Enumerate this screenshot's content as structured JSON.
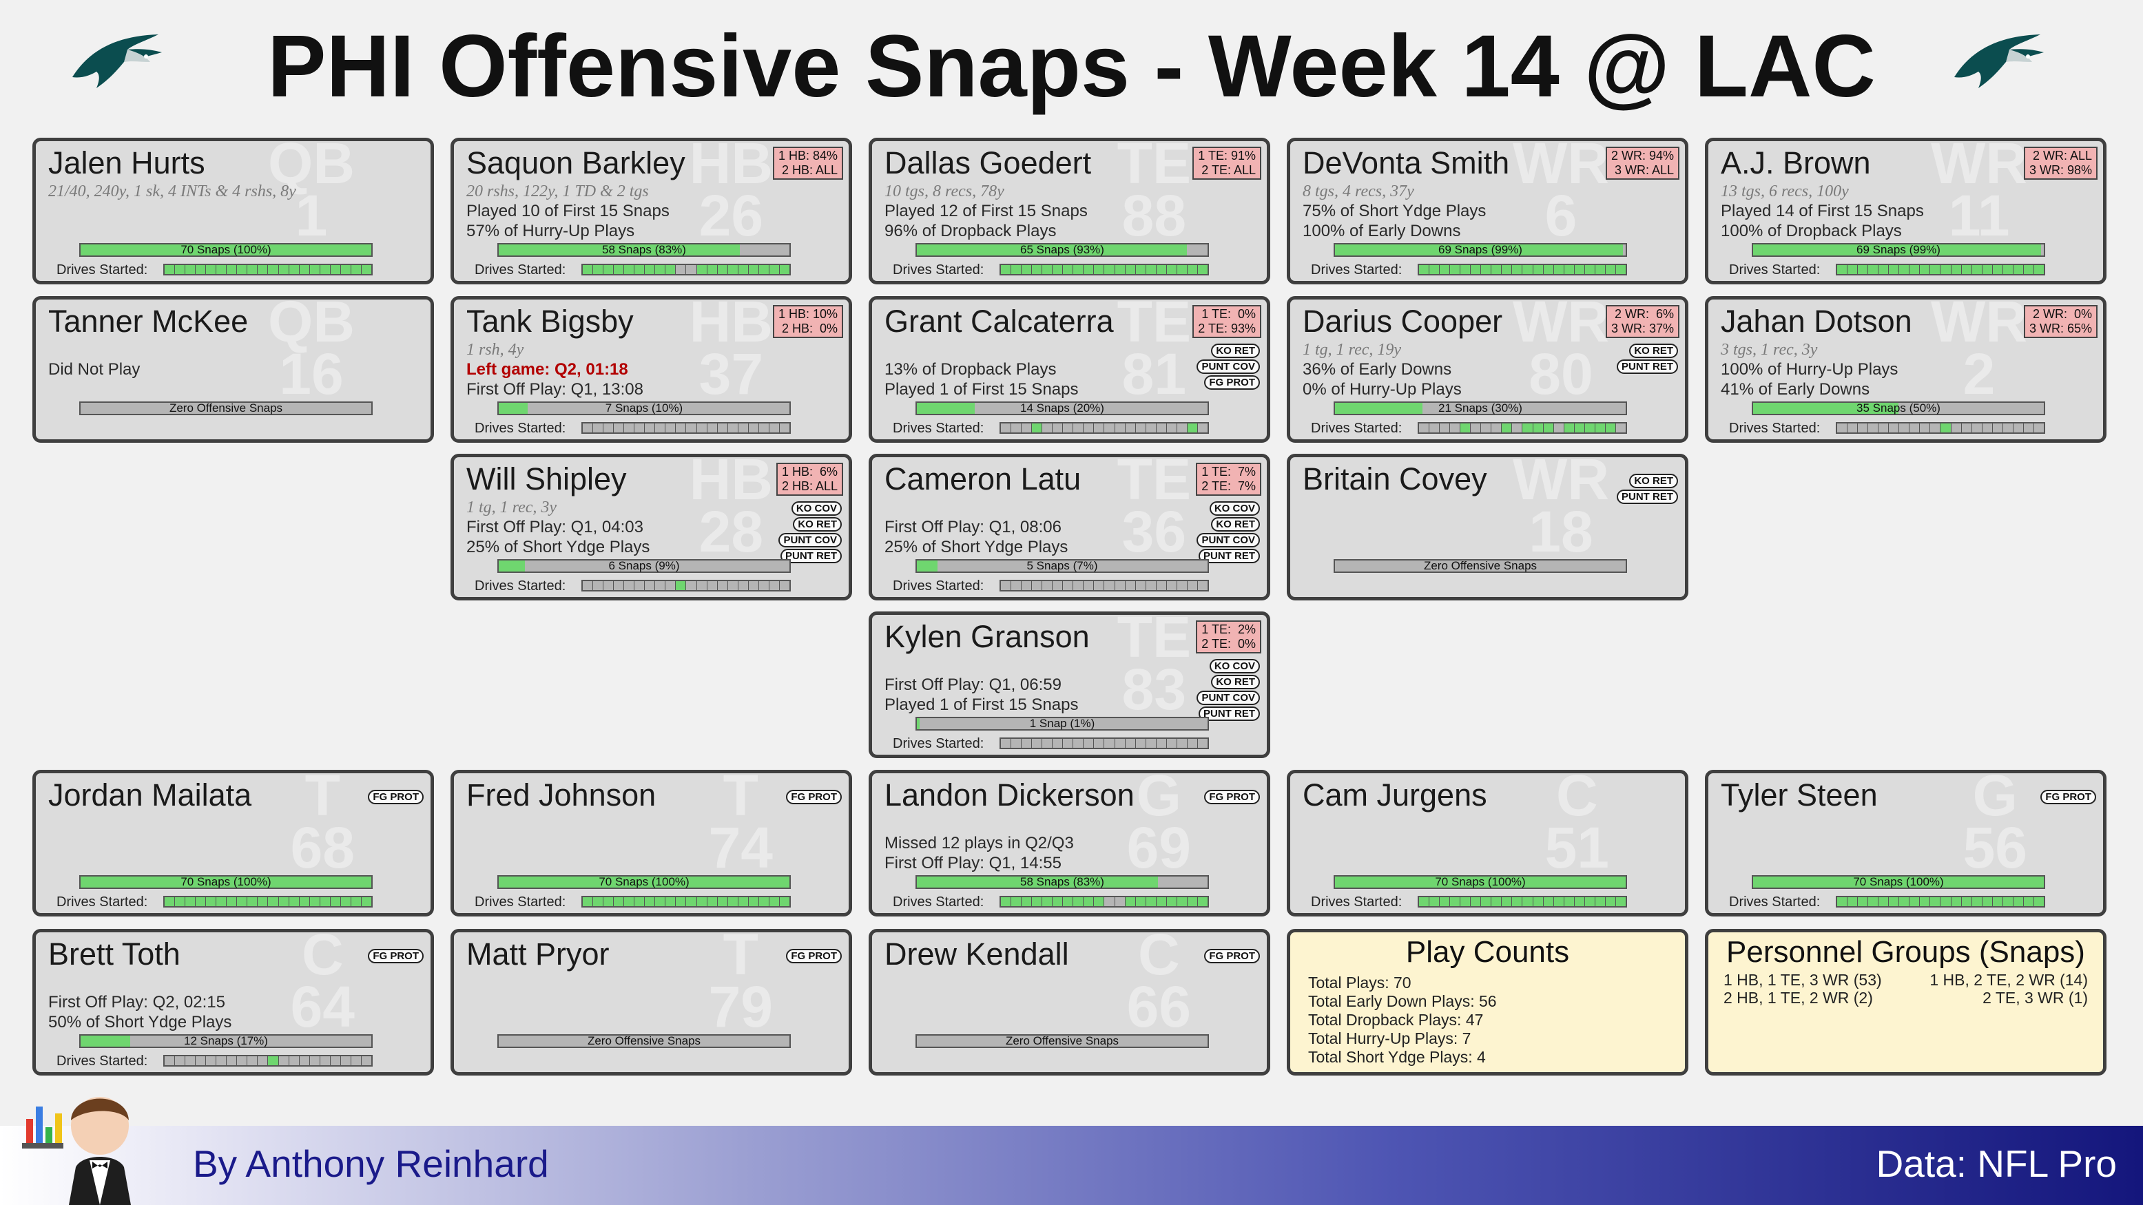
{
  "title": "PHI Offensive Snaps - Week 14 @ LAC",
  "drives_label": "Drives Started:",
  "colors": {
    "bar_fill": "#6fd66f",
    "share_badge": "#f1b3b3",
    "info_card": "#fdf4d0"
  },
  "players": [
    {
      "name": "Jalen Hurts",
      "pos": "QB",
      "num": "1",
      "share": "",
      "lines": [
        {
          "t": "21/40, 240y, 1 sk, 4 INTs & 4 rshs, 8y",
          "s": "sub"
        }
      ],
      "tags": [],
      "snaps_label": "70 Snaps (100%)",
      "snap_pct": 1.0,
      "drives": [
        1,
        1,
        1,
        1,
        1,
        1,
        1,
        1,
        1,
        1,
        1,
        1,
        1,
        1,
        1,
        1,
        1,
        1,
        1,
        1
      ]
    },
    {
      "name": "Saquon Barkley",
      "pos": "HB",
      "num": "26",
      "share": "1 HB: 84%\n2 HB: ALL",
      "lines": [
        {
          "t": "20 rshs, 122y, 1 TD & 2 tgs",
          "s": "sub"
        },
        {
          "t": "Played 10 of First 15 Snaps",
          "s": ""
        },
        {
          "t": "57% of Hurry-Up Plays",
          "s": ""
        }
      ],
      "tags": [],
      "snaps_label": "58 Snaps (83%)",
      "snap_pct": 0.83,
      "drives": [
        1,
        1,
        1,
        1,
        1,
        1,
        1,
        1,
        1,
        0,
        0,
        1,
        1,
        1,
        1,
        1,
        1,
        1,
        1,
        1
      ]
    },
    {
      "name": "Dallas Goedert",
      "pos": "TE",
      "num": "88",
      "share": "1 TE: 91%\n2 TE: ALL",
      "lines": [
        {
          "t": "10 tgs, 8 recs, 78y",
          "s": "sub"
        },
        {
          "t": "Played 12 of First 15 Snaps",
          "s": ""
        },
        {
          "t": "96% of Dropback Plays",
          "s": ""
        }
      ],
      "tags": [],
      "snaps_label": "65 Snaps (93%)",
      "snap_pct": 0.93,
      "drives": [
        1,
        1,
        1,
        1,
        1,
        1,
        1,
        1,
        1,
        1,
        1,
        1,
        1,
        1,
        1,
        1,
        1,
        1,
        1,
        1
      ]
    },
    {
      "name": "DeVonta Smith",
      "pos": "WR",
      "num": "6",
      "share": "2 WR: 94%\n3 WR: ALL",
      "lines": [
        {
          "t": "8 tgs, 4 recs, 37y",
          "s": "sub"
        },
        {
          "t": "75% of Short Ydge Plays",
          "s": ""
        },
        {
          "t": "100% of Early Downs",
          "s": ""
        }
      ],
      "tags": [],
      "snaps_label": "69 Snaps (99%)",
      "snap_pct": 0.99,
      "drives": [
        1,
        1,
        1,
        1,
        1,
        1,
        1,
        1,
        1,
        1,
        1,
        1,
        1,
        1,
        1,
        1,
        1,
        1,
        1,
        1
      ]
    },
    {
      "name": "A.J. Brown",
      "pos": "WR",
      "num": "11",
      "share": "2 WR: ALL\n3 WR: 98%",
      "lines": [
        {
          "t": "13 tgs, 6 recs, 100y",
          "s": "sub"
        },
        {
          "t": "Played 14 of First 15 Snaps",
          "s": ""
        },
        {
          "t": "100% of Dropback Plays",
          "s": ""
        }
      ],
      "tags": [],
      "snaps_label": "69 Snaps (99%)",
      "snap_pct": 0.99,
      "drives": [
        1,
        1,
        1,
        1,
        1,
        1,
        1,
        1,
        1,
        1,
        1,
        1,
        1,
        1,
        1,
        1,
        1,
        1,
        1,
        1
      ]
    },
    {
      "name": "Tanner McKee",
      "pos": "QB",
      "num": "16",
      "share": "",
      "lines": [
        {
          "t": "",
          "s": ""
        },
        {
          "t": "Did Not Play",
          "s": ""
        }
      ],
      "tags": [],
      "snaps_label": "Zero Offensive Snaps",
      "snap_pct": 0,
      "drives": null
    },
    {
      "name": "Tank Bigsby",
      "pos": "HB",
      "num": "37",
      "share": "1 HB: 10%\n2 HB:  0%",
      "lines": [
        {
          "t": "1 rsh, 4y",
          "s": "sub"
        },
        {
          "t": "Left game: Q2, 01:18",
          "s": "red"
        },
        {
          "t": "First Off Play: Q1, 13:08",
          "s": ""
        }
      ],
      "tags": [],
      "snaps_label": "7 Snaps (10%)",
      "snap_pct": 0.1,
      "drives": [
        0,
        0,
        0,
        0,
        0,
        0,
        0,
        0,
        0,
        0,
        0,
        0,
        0,
        0,
        0,
        0,
        0,
        0,
        0,
        0
      ]
    },
    {
      "name": "Grant Calcaterra",
      "pos": "TE",
      "num": "81",
      "share": "1 TE:  0%\n2 TE: 93%",
      "lines": [
        {
          "t": "",
          "s": ""
        },
        {
          "t": "13% of Dropback Plays",
          "s": ""
        },
        {
          "t": "Played 1 of First 15 Snaps",
          "s": ""
        }
      ],
      "tags": [
        "KO RET",
        "PUNT COV",
        "FG PROT"
      ],
      "snaps_label": "14 Snaps (20%)",
      "snap_pct": 0.2,
      "drives": [
        0,
        0,
        0,
        1,
        0,
        0,
        0,
        0,
        0,
        0,
        0,
        0,
        0,
        0,
        0,
        0,
        0,
        0,
        1,
        0
      ]
    },
    {
      "name": "Darius Cooper",
      "pos": "WR",
      "num": "80",
      "share": "2 WR:  6%\n3 WR: 37%",
      "lines": [
        {
          "t": "1 tg, 1 rec, 19y",
          "s": "sub"
        },
        {
          "t": "36% of Early Downs",
          "s": ""
        },
        {
          "t": "0% of Hurry-Up Plays",
          "s": ""
        }
      ],
      "tags": [
        "KO RET",
        "PUNT RET"
      ],
      "snaps_label": "21 Snaps (30%)",
      "snap_pct": 0.3,
      "drives": [
        0,
        0,
        0,
        0,
        1,
        0,
        0,
        0,
        1,
        0,
        1,
        1,
        1,
        0,
        1,
        1,
        1,
        1,
        1,
        0
      ]
    },
    {
      "name": "Jahan Dotson",
      "pos": "WR",
      "num": "2",
      "share": "2 WR:  0%\n3 WR: 65%",
      "lines": [
        {
          "t": "3 tgs, 1 rec, 3y",
          "s": "sub"
        },
        {
          "t": "100% of Hurry-Up Plays",
          "s": ""
        },
        {
          "t": "41% of Early Downs",
          "s": ""
        }
      ],
      "tags": [],
      "snaps_label": "35 Snaps (50%)",
      "snap_pct": 0.5,
      "drives": [
        0,
        0,
        0,
        0,
        0,
        0,
        0,
        0,
        0,
        0,
        1,
        0,
        0,
        0,
        0,
        0,
        0,
        0,
        0,
        0
      ]
    },
    {
      "name": "Will Shipley",
      "pos": "HB",
      "num": "28",
      "share": "1 HB:  6%\n2 HB: ALL",
      "lines": [
        {
          "t": "1 tg, 1 rec, 3y",
          "s": "sub"
        },
        {
          "t": "First Off Play: Q1, 04:03",
          "s": ""
        },
        {
          "t": "25% of Short Ydge Plays",
          "s": ""
        }
      ],
      "tags": [
        "KO COV",
        "KO RET",
        "PUNT COV",
        "PUNT RET"
      ],
      "snaps_label": "6 Snaps (9%)",
      "snap_pct": 0.09,
      "drives": [
        0,
        0,
        0,
        0,
        0,
        0,
        0,
        0,
        0,
        1,
        0,
        0,
        0,
        0,
        0,
        0,
        0,
        0,
        0,
        0
      ]
    },
    {
      "name": "Cameron Latu",
      "pos": "TE",
      "num": "36",
      "share": "1 TE:  7%\n2 TE:  7%",
      "lines": [
        {
          "t": "",
          "s": ""
        },
        {
          "t": "First Off Play: Q1, 08:06",
          "s": ""
        },
        {
          "t": "25% of Short Ydge Plays",
          "s": ""
        }
      ],
      "tags": [
        "KO COV",
        "KO RET",
        "PUNT COV",
        "PUNT RET"
      ],
      "snaps_label": "5 Snaps (7%)",
      "snap_pct": 0.07,
      "drives": [
        0,
        0,
        0,
        0,
        0,
        0,
        0,
        0,
        0,
        0,
        0,
        0,
        0,
        0,
        0,
        0,
        0,
        0,
        0,
        0
      ]
    },
    {
      "name": "Britain Covey",
      "pos": "WR",
      "num": "18",
      "share": "",
      "lines": [],
      "tags": [
        "KO RET",
        "PUNT RET"
      ],
      "snaps_label": "Zero Offensive Snaps",
      "snap_pct": 0,
      "drives": null
    },
    {
      "name": "Kylen Granson",
      "pos": "TE",
      "num": "83",
      "share": "1 TE:  2%\n2 TE:  0%",
      "lines": [
        {
          "t": "",
          "s": ""
        },
        {
          "t": "First Off Play: Q1, 06:59",
          "s": ""
        },
        {
          "t": "Played 1 of First 15 Snaps",
          "s": ""
        }
      ],
      "tags": [
        "KO COV",
        "KO RET",
        "PUNT COV",
        "PUNT RET"
      ],
      "snaps_label": "1 Snap (1%)",
      "snap_pct": 0.01,
      "drives": [
        0,
        0,
        0,
        0,
        0,
        0,
        0,
        0,
        0,
        0,
        0,
        0,
        0,
        0,
        0,
        0,
        0,
        0,
        0,
        0
      ]
    },
    {
      "name": "Jordan Mailata",
      "pos": "T",
      "num": "68",
      "share": "",
      "lines": [],
      "tags": [
        "FG PROT"
      ],
      "snaps_label": "70 Snaps (100%)",
      "snap_pct": 1.0,
      "drives": [
        1,
        1,
        1,
        1,
        1,
        1,
        1,
        1,
        1,
        1,
        1,
        1,
        1,
        1,
        1,
        1,
        1,
        1,
        1,
        1
      ]
    },
    {
      "name": "Fred Johnson",
      "pos": "T",
      "num": "74",
      "share": "",
      "lines": [],
      "tags": [
        "FG PROT"
      ],
      "snaps_label": "70 Snaps (100%)",
      "snap_pct": 1.0,
      "drives": [
        1,
        1,
        1,
        1,
        1,
        1,
        1,
        1,
        1,
        1,
        1,
        1,
        1,
        1,
        1,
        1,
        1,
        1,
        1,
        1
      ]
    },
    {
      "name": "Landon Dickerson",
      "pos": "G",
      "num": "69",
      "share": "",
      "lines": [
        {
          "t": "",
          "s": ""
        },
        {
          "t": "Missed 12 plays in Q2/Q3",
          "s": ""
        },
        {
          "t": "First Off Play: Q1, 14:55",
          "s": ""
        }
      ],
      "tags": [
        "FG PROT"
      ],
      "snaps_label": "58 Snaps (83%)",
      "snap_pct": 0.83,
      "drives": [
        1,
        1,
        1,
        1,
        1,
        1,
        1,
        1,
        1,
        1,
        0,
        0,
        1,
        1,
        1,
        1,
        1,
        1,
        1,
        1
      ]
    },
    {
      "name": "Cam Jurgens",
      "pos": "C",
      "num": "51",
      "share": "",
      "lines": [],
      "tags": [],
      "snaps_label": "70 Snaps (100%)",
      "snap_pct": 1.0,
      "drives": [
        1,
        1,
        1,
        1,
        1,
        1,
        1,
        1,
        1,
        1,
        1,
        1,
        1,
        1,
        1,
        1,
        1,
        1,
        1,
        1
      ]
    },
    {
      "name": "Tyler Steen",
      "pos": "G",
      "num": "56",
      "share": "",
      "lines": [],
      "tags": [
        "FG PROT"
      ],
      "snaps_label": "70 Snaps (100%)",
      "snap_pct": 1.0,
      "drives": [
        1,
        1,
        1,
        1,
        1,
        1,
        1,
        1,
        1,
        1,
        1,
        1,
        1,
        1,
        1,
        1,
        1,
        1,
        1,
        1
      ]
    },
    {
      "name": "Brett Toth",
      "pos": "C",
      "num": "64",
      "share": "",
      "lines": [
        {
          "t": "",
          "s": ""
        },
        {
          "t": "First Off Play: Q2, 02:15",
          "s": ""
        },
        {
          "t": "50% of Short Ydge Plays",
          "s": ""
        }
      ],
      "tags": [
        "FG PROT"
      ],
      "snaps_label": "12 Snaps (17%)",
      "snap_pct": 0.17,
      "drives": [
        0,
        0,
        0,
        0,
        0,
        0,
        0,
        0,
        0,
        0,
        1,
        0,
        0,
        0,
        0,
        0,
        0,
        0,
        0,
        0
      ]
    },
    {
      "name": "Matt Pryor",
      "pos": "T",
      "num": "79",
      "share": "",
      "lines": [],
      "tags": [
        "FG PROT"
      ],
      "snaps_label": "Zero Offensive Snaps",
      "snap_pct": 0,
      "drives": null
    },
    {
      "name": "Drew Kendall",
      "pos": "C",
      "num": "66",
      "share": "",
      "lines": [],
      "tags": [
        "FG PROT"
      ],
      "snaps_label": "Zero Offensive Snaps",
      "snap_pct": 0,
      "drives": null
    }
  ],
  "play_counts": {
    "title": "Play Counts",
    "lines": [
      "Total Plays: 70",
      "Total Early Down Plays: 56",
      "Total Dropback Plays: 47",
      "Total Hurry-Up Plays: 7",
      "Total Short Ydge Plays: 4"
    ]
  },
  "personnel": {
    "title": "Personnel Groups (Snaps)",
    "items": [
      "1 HB, 1 TE, 3 WR (53)",
      "1 HB, 2 TE, 2 WR (14)",
      "2 HB, 1 TE, 2 WR (2)",
      "2 TE, 3 WR (1)"
    ]
  },
  "footer": {
    "byline": "By Anthony Reinhard",
    "source": "Data: NFL Pro"
  }
}
